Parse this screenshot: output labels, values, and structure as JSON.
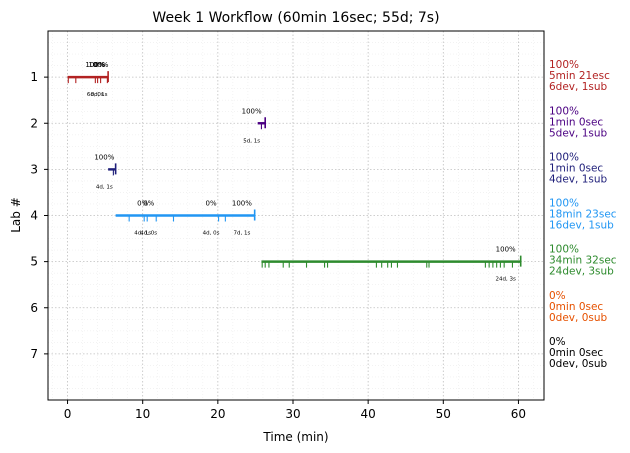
{
  "chart_data": {
    "type": "timeline",
    "title": "Week 1 Workflow (60min 16sec; 55d; 7s)",
    "xlabel": "Time (min)",
    "ylabel": "Lab #",
    "xlim": [
      -2.6,
      63.4
    ],
    "ylim": [
      8,
      0
    ],
    "xticks": [
      0,
      10,
      20,
      30,
      40,
      50,
      60
    ],
    "yticks": [
      1,
      2,
      3,
      4,
      5,
      6,
      7
    ],
    "grid": true,
    "labs": [
      {
        "lab": 1,
        "color": "#b22222",
        "start": 0,
        "end": 5.4,
        "ticks": [
          0.1,
          1.1,
          3.7,
          4.0,
          4.4,
          5.3
        ],
        "annotations": [
          {
            "x": 3.7,
            "top": "100%",
            "bottom": "6d, 0s"
          },
          {
            "x": 4.2,
            "top": "0%",
            "bottom": "0d, 1s"
          },
          {
            "x": 4.1,
            "top": "100%",
            "bottom": ""
          }
        ],
        "summary": [
          "100%",
          "5min 21esc",
          "6dev, 1sub"
        ]
      },
      {
        "lab": 2,
        "color": "#4b0082",
        "start": 25.3,
        "end": 26.3,
        "ticks": [
          25.8
        ],
        "annotations": [
          {
            "x": 24.5,
            "top": "100%",
            "bottom": "5d, 1s"
          }
        ],
        "summary": [
          "100%",
          "1min 0sec",
          "5dev, 1sub"
        ]
      },
      {
        "lab": 3,
        "color": "#1f1f7a",
        "start": 5.4,
        "end": 6.4,
        "ticks": [
          6.1
        ],
        "annotations": [
          {
            "x": 4.9,
            "top": "100%",
            "bottom": "4d, 1s"
          }
        ],
        "summary": [
          "100%",
          "1min 0sec",
          "4dev, 1sub"
        ]
      },
      {
        "lab": 4,
        "color": "#2196f3",
        "start": 6.4,
        "end": 24.9,
        "ticks": [
          8.2,
          10.2,
          10.6,
          11.8,
          14.1,
          20.1,
          21.0
        ],
        "annotations": [
          {
            "x": 10.0,
            "top": "0%",
            "bottom": "4d, 1s"
          },
          {
            "x": 10.8,
            "top": "0%",
            "bottom": "4d, 0s"
          },
          {
            "x": 19.1,
            "top": "0%",
            "bottom": "4d, 0s"
          },
          {
            "x": 23.2,
            "top": "100%",
            "bottom": "7d, 1s"
          }
        ],
        "summary": [
          "100%",
          "18min 23sec",
          "16dev, 1sub"
        ]
      },
      {
        "lab": 5,
        "color": "#2e8b2e",
        "start": 25.8,
        "end": 60.3,
        "ticks": [
          25.9,
          26.3,
          26.8,
          28.7,
          29.5,
          31.8,
          34.2,
          34.6,
          41.1,
          41.8,
          42.6,
          43.1,
          43.9,
          47.8,
          48.1,
          55.6,
          56.1,
          56.6,
          57.1,
          57.6,
          58.1,
          59.2
        ],
        "annotations": [
          {
            "x": 58.3,
            "top": "100%",
            "bottom": "24d, 3s"
          }
        ],
        "summary": [
          "100%",
          "34min 32sec",
          "24dev, 3sub"
        ]
      },
      {
        "lab": 6,
        "color": "#e65100",
        "start": null,
        "end": null,
        "ticks": [],
        "annotations": [],
        "summary": [
          "0%",
          "0min 0sec",
          "0dev, 0sub"
        ]
      },
      {
        "lab": 7,
        "color": "#000000",
        "start": null,
        "end": null,
        "ticks": [],
        "annotations": [],
        "summary": [
          "0%",
          "0min 0sec",
          "0dev, 0sub"
        ]
      }
    ]
  }
}
